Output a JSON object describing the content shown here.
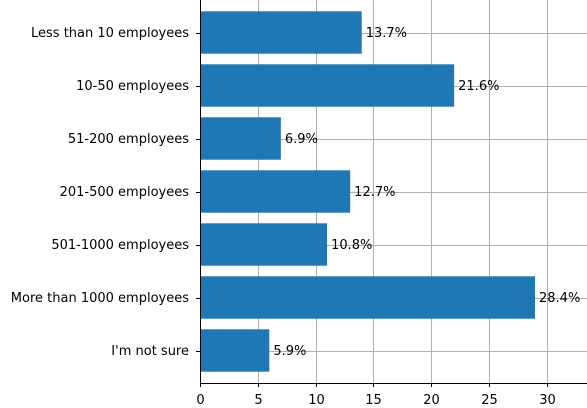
{
  "chart_data": {
    "type": "bar",
    "orientation": "horizontal",
    "title": "",
    "xlabel": "",
    "ylabel": "",
    "categories": [
      "Less than 10 employees",
      "10-50 employees",
      "51-200 employees",
      "201-500 employees",
      "501-1000 employees",
      "More than 1000 employees",
      "I'm not sure"
    ],
    "values": [
      14,
      22,
      7,
      13,
      11,
      29,
      6
    ],
    "data_labels": [
      "13.7%",
      "21.6%",
      "6.9%",
      "12.7%",
      "10.8%",
      "28.4%",
      "5.9%"
    ],
    "xlim": [
      0,
      33.5
    ],
    "xticks": [
      0,
      5,
      10,
      15,
      20,
      25,
      30
    ],
    "xtick_labels": [
      "0",
      "5",
      "10",
      "15",
      "20",
      "25",
      "30"
    ],
    "grid": true,
    "bar_color": "#1f77b4",
    "grid_color": "#b0b0b0",
    "axis_color": "#000000"
  }
}
